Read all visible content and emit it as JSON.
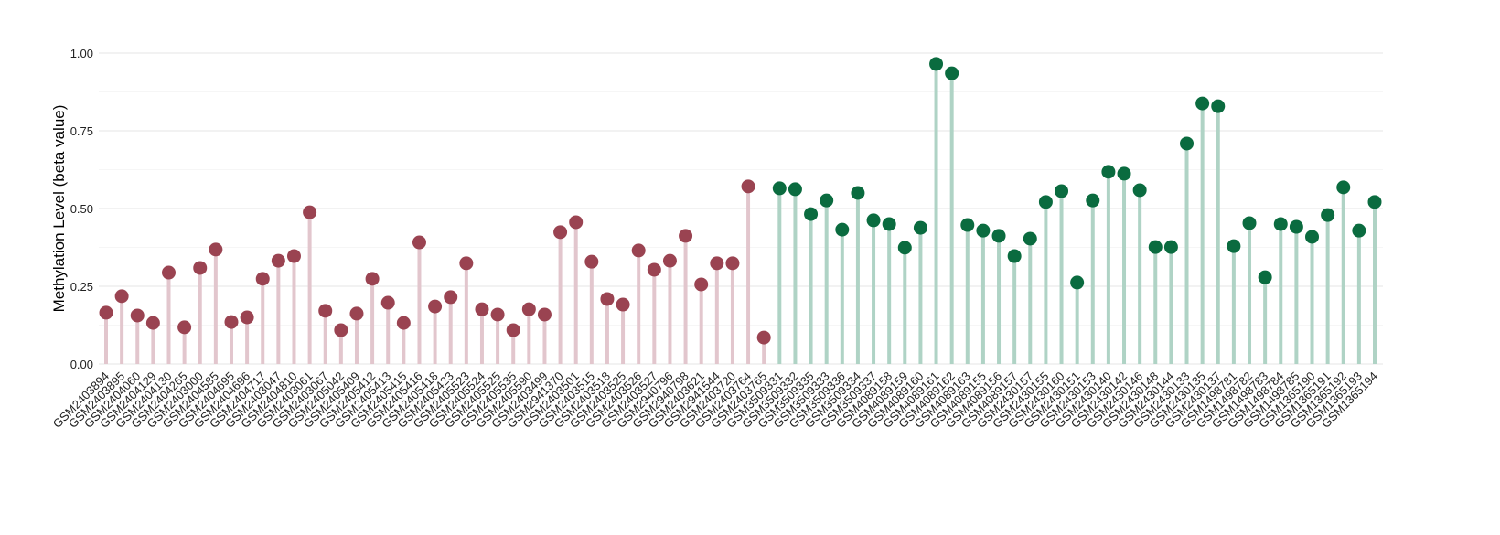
{
  "chart_data": {
    "type": "lollipop",
    "title": "",
    "xlabel": "",
    "ylabel": "Methylation Level (beta value)",
    "ylim": [
      0,
      1
    ],
    "yticks": [
      "0.00",
      "0.25",
      "0.50",
      "0.75",
      "1.00"
    ],
    "grid": true,
    "legend": "none",
    "colors": {
      "group1_point": "#9a4351",
      "group1_stem": "#e2c6cd",
      "group2_point": "#0a6b3f",
      "group2_stem": "#afd3c5"
    },
    "groups": [
      {
        "color_key": "group1",
        "categories": [
          "GSM2403894",
          "GSM2403895",
          "GSM2404060",
          "GSM2404129",
          "GSM2404130",
          "GSM2404265",
          "GSM2403000",
          "GSM2404585",
          "GSM2404695",
          "GSM2404696",
          "GSM2404717",
          "GSM2403047",
          "GSM2404810",
          "GSM2403061",
          "GSM2403067",
          "GSM2405042",
          "GSM2405409",
          "GSM2405412",
          "GSM2405413",
          "GSM2405415",
          "GSM2405416",
          "GSM2405418",
          "GSM2405423",
          "GSM2405523",
          "GSM2405524",
          "GSM2405525",
          "GSM2405535",
          "GSM2405590",
          "GSM2403499",
          "GSM2941370",
          "GSM2403501",
          "GSM2403515",
          "GSM2403518",
          "GSM2403525",
          "GSM2403526",
          "GSM2403527",
          "GSM2940796",
          "GSM2940798",
          "GSM2403621",
          "GSM2941544",
          "GSM2403720",
          "GSM2403764",
          "GSM2403765"
        ],
        "values": [
          0.165,
          0.218,
          0.156,
          0.132,
          0.294,
          0.118,
          0.309,
          0.368,
          0.135,
          0.15,
          0.274,
          0.332,
          0.347,
          0.488,
          0.171,
          0.109,
          0.162,
          0.274,
          0.197,
          0.132,
          0.391,
          0.185,
          0.215,
          0.324,
          0.176,
          0.159,
          0.109,
          0.176,
          0.159,
          0.424,
          0.456,
          0.329,
          0.209,
          0.191,
          0.365,
          0.303,
          0.332,
          0.412,
          0.256,
          0.324,
          0.324,
          0.571,
          0.085
        ]
      },
      {
        "color_key": "group2",
        "categories": [
          "GSM3509331",
          "GSM3509332",
          "GSM3509335",
          "GSM3509333",
          "GSM3509336",
          "GSM3509334",
          "GSM3509337",
          "GSM4089158",
          "GSM4089159",
          "GSM4089160",
          "GSM4089161",
          "GSM4089162",
          "GSM4089163",
          "GSM4089155",
          "GSM4089156",
          "GSM4089157",
          "GSM2430157",
          "GSM2430155",
          "GSM2430160",
          "GSM2430151",
          "GSM2430153",
          "GSM2430140",
          "GSM2430142",
          "GSM2430146",
          "GSM2430148",
          "GSM2430144",
          "GSM2430133",
          "GSM2430135",
          "GSM2430137",
          "GSM1498781",
          "GSM1498782",
          "GSM1498783",
          "GSM1498784",
          "GSM1498785",
          "GSM1365190",
          "GSM1365191",
          "GSM1365192",
          "GSM1365193",
          "GSM1365194"
        ],
        "values": [
          0.565,
          0.562,
          0.482,
          0.526,
          0.432,
          0.55,
          0.462,
          0.45,
          0.374,
          0.438,
          0.965,
          0.935,
          0.447,
          0.429,
          0.412,
          0.347,
          0.403,
          0.521,
          0.556,
          0.262,
          0.526,
          0.618,
          0.612,
          0.559,
          0.376,
          0.376,
          0.709,
          0.838,
          0.829,
          0.379,
          0.453,
          0.279,
          0.45,
          0.441,
          0.409,
          0.479,
          0.568,
          0.429,
          0.521
        ]
      }
    ]
  }
}
